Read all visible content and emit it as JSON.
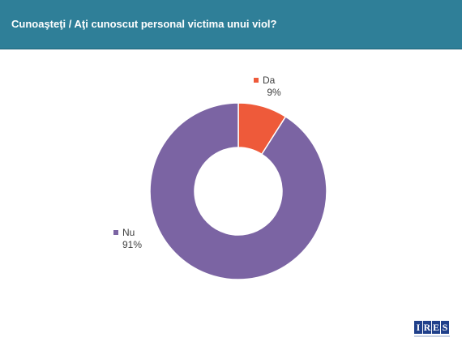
{
  "header": {
    "title": "Cunoaşteţi / Aţi cunoscut personal victima unui viol?"
  },
  "colors": {
    "header_bg": "#2f7f98",
    "da": "#ee5a3a",
    "nu": "#7b64a3"
  },
  "logo": {
    "letters": [
      "I",
      "R",
      "E",
      "S"
    ]
  },
  "chart_data": {
    "type": "pie",
    "donut": true,
    "title": "Cunoaşteţi / Aţi cunoscut personal victima unui viol?",
    "legend": "labels-beside-slices",
    "slices": [
      {
        "label": "Da",
        "value": 9,
        "value_label": "9%",
        "color": "#ee5a3a"
      },
      {
        "label": "Nu",
        "value": 91,
        "value_label": "91%",
        "color": "#7b64a3"
      }
    ]
  }
}
